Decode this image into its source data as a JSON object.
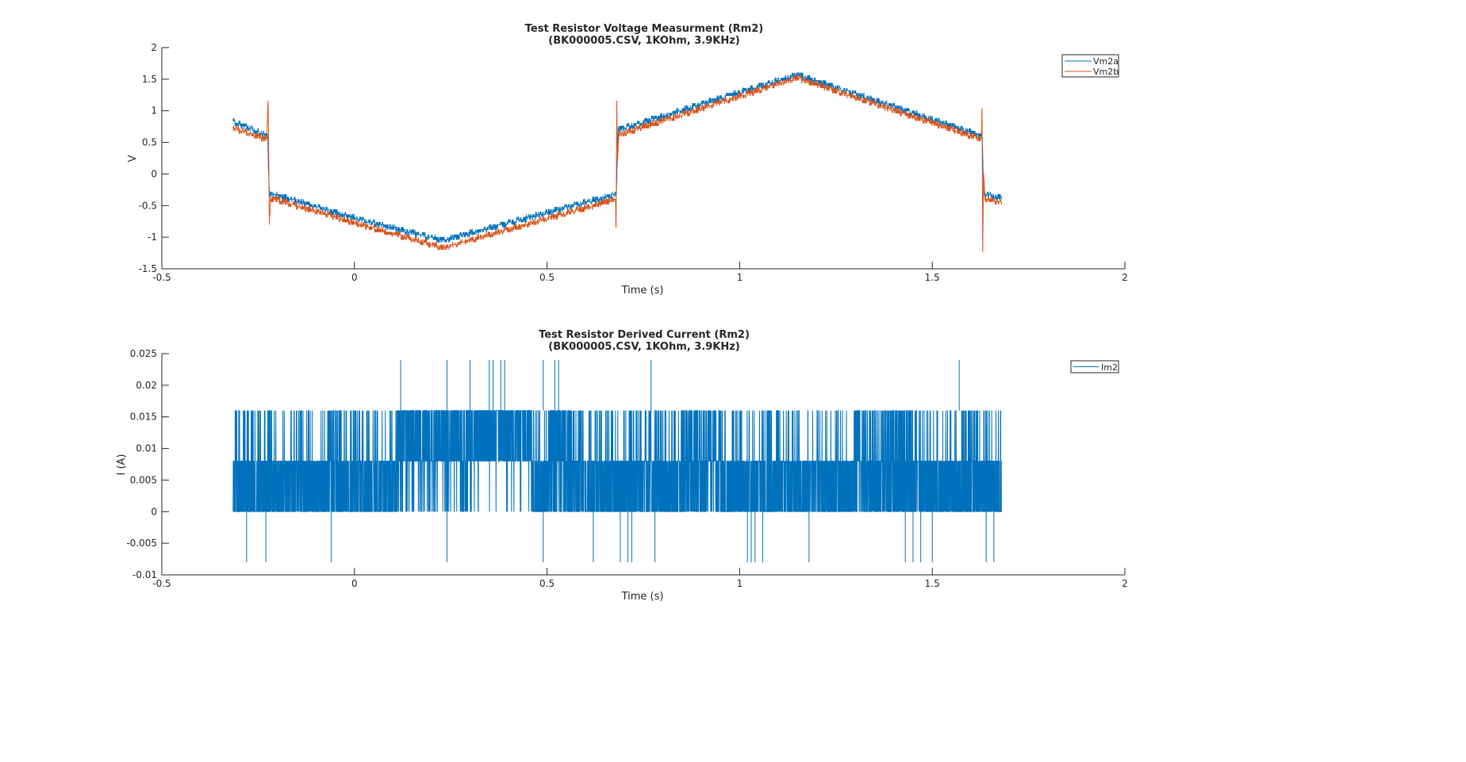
{
  "colors": {
    "series1": "#0072BD",
    "series2": "#D95319",
    "axes": "#262626",
    "background": "#ffffff"
  },
  "chart_data": [
    {
      "type": "line",
      "title": "Test Resistor Voltage Measurment (Rm2)",
      "subtitle": "(BK000005.CSV, 1KOhm, 3.9KHz)",
      "xlabel": "Time (s)",
      "ylabel": "V",
      "xlim": [
        -0.5,
        2
      ],
      "ylim": [
        -1.5,
        2
      ],
      "xticks": [
        "-0.5",
        "0",
        "0.5",
        "1",
        "1.5",
        "2"
      ],
      "yticks": [
        "-1.5",
        "-1",
        "-0.5",
        "0",
        "0.5",
        "1",
        "1.5",
        "2"
      ],
      "grid": false,
      "legend_position": "top-right",
      "series": [
        {
          "name": "Vm2a",
          "color": "#0072BD",
          "x": [
            -0.315,
            -0.225,
            -0.223,
            -0.22,
            0.0,
            0.23,
            0.68,
            0.682,
            0.685,
            1.15,
            1.63,
            1.632,
            1.635,
            1.68
          ],
          "y": [
            0.83,
            0.6,
            0.0,
            -0.3,
            -0.7,
            -1.05,
            -0.32,
            0.2,
            0.7,
            1.57,
            0.6,
            0.0,
            -0.32,
            -0.37
          ]
        },
        {
          "name": "Vm2b",
          "color": "#D95319",
          "x": [
            -0.315,
            -0.228,
            -0.224,
            -0.222,
            -0.221,
            -0.218,
            0.0,
            0.23,
            0.678,
            0.679,
            0.681,
            0.683,
            0.686,
            1.15,
            1.628,
            1.629,
            1.631,
            1.633,
            1.637,
            1.68
          ],
          "y": [
            0.73,
            0.55,
            1.2,
            0.0,
            -0.8,
            -0.38,
            -0.77,
            -1.17,
            -0.4,
            -1.05,
            1.2,
            0.2,
            0.62,
            1.52,
            0.55,
            1.27,
            -1.28,
            0.0,
            -0.38,
            -0.45
          ]
        }
      ]
    },
    {
      "type": "line",
      "title": "Test Resistor Derived Current (Rm2)",
      "subtitle": "(BK000005.CSV, 1KOhm, 3.9KHz)",
      "xlabel": "Time (s)",
      "ylabel": "I (A)",
      "xlim": [
        -0.5,
        2
      ],
      "ylim": [
        -0.01,
        0.025
      ],
      "xticks": [
        "-0.5",
        "0",
        "0.5",
        "1",
        "1.5",
        "2"
      ],
      "yticks": [
        "-0.01",
        "-0.005",
        "0",
        "0.005",
        "0.01",
        "0.015",
        "0.02",
        "0.025"
      ],
      "grid": false,
      "legend_position": "top-right",
      "series": [
        {
          "name": "Im2",
          "color": "#0072BD",
          "x_range": [
            -0.315,
            1.68
          ],
          "levels": [
            -0.008,
            0.0,
            0.008,
            0.016,
            0.024
          ],
          "spikes_up": [
            0.12,
            0.24,
            0.3,
            0.35,
            0.36,
            0.38,
            0.39,
            0.49,
            0.52,
            0.53,
            0.77,
            1.57
          ],
          "spikes_down": [
            -0.28,
            -0.23,
            -0.06,
            0.24,
            0.49,
            0.62,
            0.69,
            0.71,
            0.72,
            0.78,
            1.02,
            1.03,
            1.04,
            1.06,
            1.18,
            1.43,
            1.45,
            1.47,
            1.5,
            1.64,
            1.66
          ]
        }
      ]
    }
  ]
}
